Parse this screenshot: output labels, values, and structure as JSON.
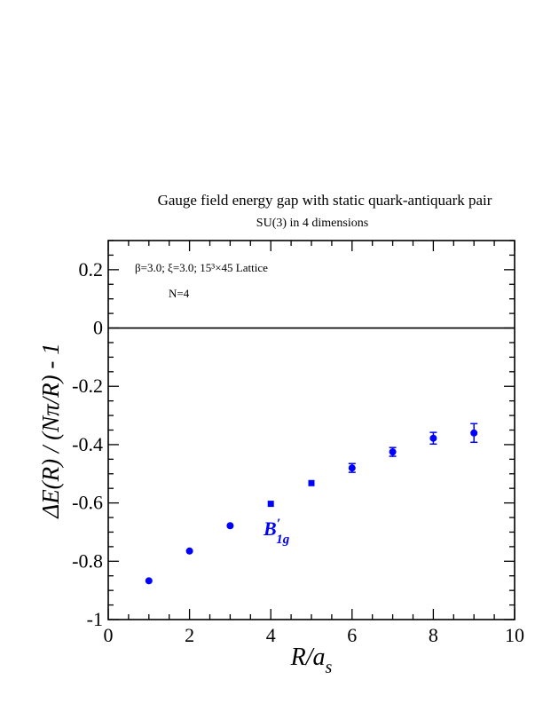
{
  "chart_data": {
    "type": "scatter",
    "title": "Gauge field energy gap with static quark-antiquark pair",
    "subtitle": "SU(3) in 4 dimensions",
    "annotation_line1": "β=3.0; ξ=3.0; 15³×45 Lattice",
    "annotation_line2": "N=4",
    "xlabel": "R/a_s",
    "ylabel": "ΔE(R) / (Nπ/R) - 1",
    "xlim": [
      0,
      10
    ],
    "ylim": [
      -1,
      0.3
    ],
    "x_ticks": [
      0,
      2,
      4,
      6,
      8,
      10
    ],
    "x_tick_labels": [
      "0",
      "2",
      "4",
      "6",
      "8",
      "10"
    ],
    "y_ticks": [
      -1,
      -0.8,
      -0.6,
      -0.4,
      -0.2,
      0,
      0.2
    ],
    "y_tick_labels": [
      "-1",
      "-0.8",
      "-0.6",
      "-0.4",
      "-0.2",
      "0",
      "0.2"
    ],
    "reference_line_y": 0,
    "grid": false,
    "series": [
      {
        "name": "B′1g",
        "color": "#0000ff",
        "points": [
          {
            "x": 1,
            "y": -0.867,
            "err": 0.006,
            "marker": "circle"
          },
          {
            "x": 2,
            "y": -0.765,
            "err": 0.006,
            "marker": "circle"
          },
          {
            "x": 3,
            "y": -0.678,
            "err": 0.006,
            "marker": "circle"
          },
          {
            "x": 4,
            "y": -0.603,
            "err": 0.006,
            "marker": "square"
          },
          {
            "x": 5,
            "y": -0.532,
            "err": 0.006,
            "marker": "square"
          },
          {
            "x": 6,
            "y": -0.48,
            "err": 0.015,
            "marker": "circle"
          },
          {
            "x": 7,
            "y": -0.425,
            "err": 0.015,
            "marker": "circle"
          },
          {
            "x": 8,
            "y": -0.378,
            "err": 0.02,
            "marker": "circle"
          },
          {
            "x": 9,
            "y": -0.36,
            "err": 0.032,
            "marker": "circle"
          }
        ]
      }
    ]
  }
}
